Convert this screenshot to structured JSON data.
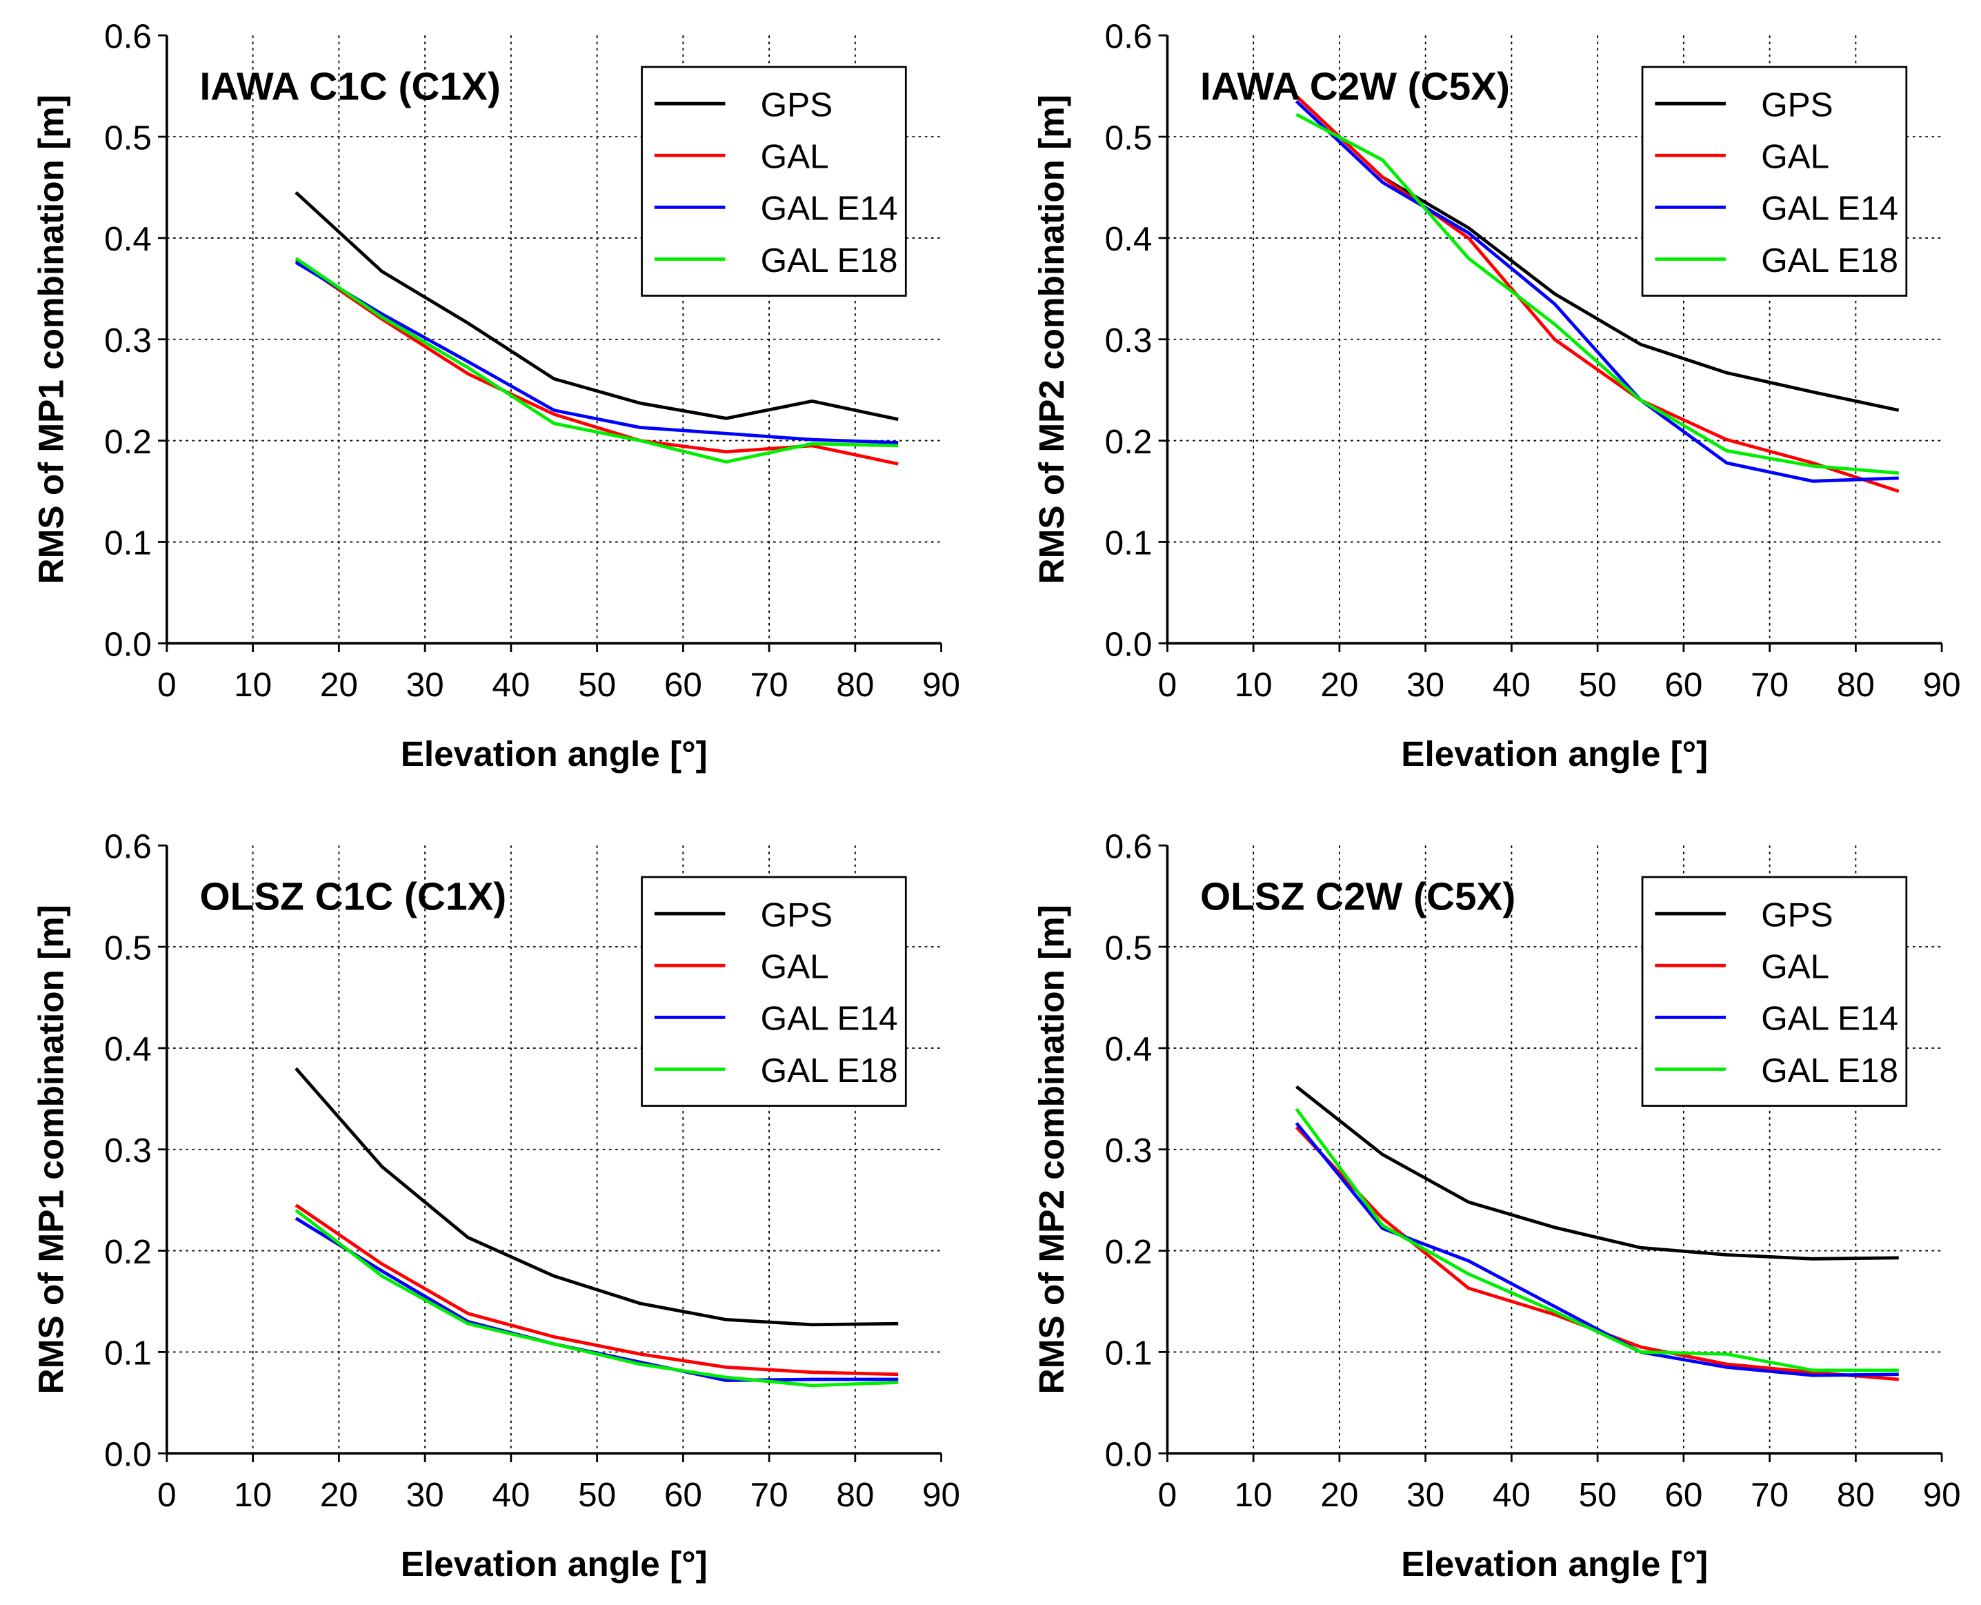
{
  "colors": {
    "GPS": "#000000",
    "GAL": "#ff0000",
    "GAL E14": "#0000ff",
    "GAL E18": "#00ee00"
  },
  "chart_data": [
    {
      "type": "line",
      "title": "IAWA C1C (C1X)",
      "xlabel": "Elevation angle [°]",
      "ylabel": "RMS of MP1 combination [m]",
      "xlim": [
        0,
        90
      ],
      "ylim": [
        0,
        0.6
      ],
      "xticks": [
        "0",
        "10",
        "20",
        "30",
        "40",
        "50",
        "60",
        "70",
        "80",
        "90"
      ],
      "yticks": [
        "0.0",
        "0.1",
        "0.2",
        "0.3",
        "0.4",
        "0.5",
        "0.6"
      ],
      "grid": true,
      "legend": "top-right",
      "x": [
        15,
        25,
        35,
        45,
        55,
        65,
        75,
        85
      ],
      "series": [
        {
          "name": "GPS",
          "values": [
            0.445,
            0.367,
            0.316,
            0.261,
            0.237,
            0.222,
            0.239,
            0.221
          ]
        },
        {
          "name": "GAL",
          "values": [
            0.378,
            0.32,
            0.266,
            0.226,
            0.2,
            0.189,
            0.195,
            0.177
          ]
        },
        {
          "name": "GAL E14",
          "values": [
            0.376,
            0.325,
            0.278,
            0.23,
            0.213,
            0.207,
            0.201,
            0.198
          ]
        },
        {
          "name": "GAL E18",
          "values": [
            0.38,
            0.322,
            0.272,
            0.217,
            0.2,
            0.179,
            0.197,
            0.195
          ]
        }
      ]
    },
    {
      "type": "line",
      "title": "IAWA C2W (C5X)",
      "xlabel": "Elevation angle [°]",
      "ylabel": "RMS of MP2 combination [m]",
      "xlim": [
        0,
        90
      ],
      "ylim": [
        0,
        0.6
      ],
      "xticks": [
        "0",
        "10",
        "20",
        "30",
        "40",
        "50",
        "60",
        "70",
        "80",
        "90"
      ],
      "yticks": [
        "0.0",
        "0.1",
        "0.2",
        "0.3",
        "0.4",
        "0.5",
        "0.6"
      ],
      "grid": true,
      "legend": "top-right",
      "x": [
        15,
        25,
        35,
        45,
        55,
        65,
        75,
        85
      ],
      "series": [
        {
          "name": "GPS",
          "values": [
            0.54,
            0.46,
            0.41,
            0.345,
            0.295,
            0.267,
            0.248,
            0.23
          ]
        },
        {
          "name": "GAL",
          "values": [
            0.54,
            0.46,
            0.4,
            0.3,
            0.24,
            0.201,
            0.178,
            0.15
          ]
        },
        {
          "name": "GAL E14",
          "values": [
            0.535,
            0.455,
            0.405,
            0.335,
            0.24,
            0.178,
            0.16,
            0.163
          ]
        },
        {
          "name": "GAL E18",
          "values": [
            0.522,
            0.477,
            0.38,
            0.315,
            0.24,
            0.19,
            0.175,
            0.168
          ]
        }
      ]
    },
    {
      "type": "line",
      "title": "OLSZ C1C (C1X)",
      "xlabel": "Elevation angle [°]",
      "ylabel": "RMS of MP1 combination [m]",
      "xlim": [
        0,
        90
      ],
      "ylim": [
        0,
        0.6
      ],
      "xticks": [
        "0",
        "10",
        "20",
        "30",
        "40",
        "50",
        "60",
        "70",
        "80",
        "90"
      ],
      "yticks": [
        "0.0",
        "0.1",
        "0.2",
        "0.3",
        "0.4",
        "0.5",
        "0.6"
      ],
      "grid": true,
      "legend": "top-right",
      "x": [
        15,
        25,
        35,
        45,
        55,
        65,
        75,
        85
      ],
      "series": [
        {
          "name": "GPS",
          "values": [
            0.38,
            0.283,
            0.213,
            0.175,
            0.148,
            0.132,
            0.127,
            0.128
          ]
        },
        {
          "name": "GAL",
          "values": [
            0.245,
            0.187,
            0.138,
            0.115,
            0.098,
            0.085,
            0.08,
            0.078
          ]
        },
        {
          "name": "GAL E14",
          "values": [
            0.232,
            0.18,
            0.13,
            0.108,
            0.09,
            0.072,
            0.073,
            0.073
          ]
        },
        {
          "name": "GAL E18",
          "values": [
            0.24,
            0.175,
            0.128,
            0.108,
            0.088,
            0.075,
            0.067,
            0.07
          ]
        }
      ]
    },
    {
      "type": "line",
      "title": "OLSZ C2W (C5X)",
      "xlabel": "Elevation angle [°]",
      "ylabel": "RMS of MP2 combination [m]",
      "xlim": [
        0,
        90
      ],
      "ylim": [
        0,
        0.6
      ],
      "xticks": [
        "0",
        "10",
        "20",
        "30",
        "40",
        "50",
        "60",
        "70",
        "80",
        "90"
      ],
      "yticks": [
        "0.0",
        "0.1",
        "0.2",
        "0.3",
        "0.4",
        "0.5",
        "0.6"
      ],
      "grid": true,
      "legend": "top-right",
      "x": [
        15,
        25,
        35,
        45,
        55,
        65,
        75,
        85
      ],
      "series": [
        {
          "name": "GPS",
          "values": [
            0.362,
            0.295,
            0.248,
            0.223,
            0.203,
            0.196,
            0.192,
            0.193
          ]
        },
        {
          "name": "GAL",
          "values": [
            0.322,
            0.232,
            0.163,
            0.137,
            0.105,
            0.088,
            0.08,
            0.073
          ]
        },
        {
          "name": "GAL E14",
          "values": [
            0.326,
            0.222,
            0.19,
            0.145,
            0.1,
            0.085,
            0.077,
            0.078
          ]
        },
        {
          "name": "GAL E18",
          "values": [
            0.34,
            0.225,
            0.177,
            0.14,
            0.1,
            0.098,
            0.082,
            0.082
          ]
        }
      ]
    }
  ]
}
